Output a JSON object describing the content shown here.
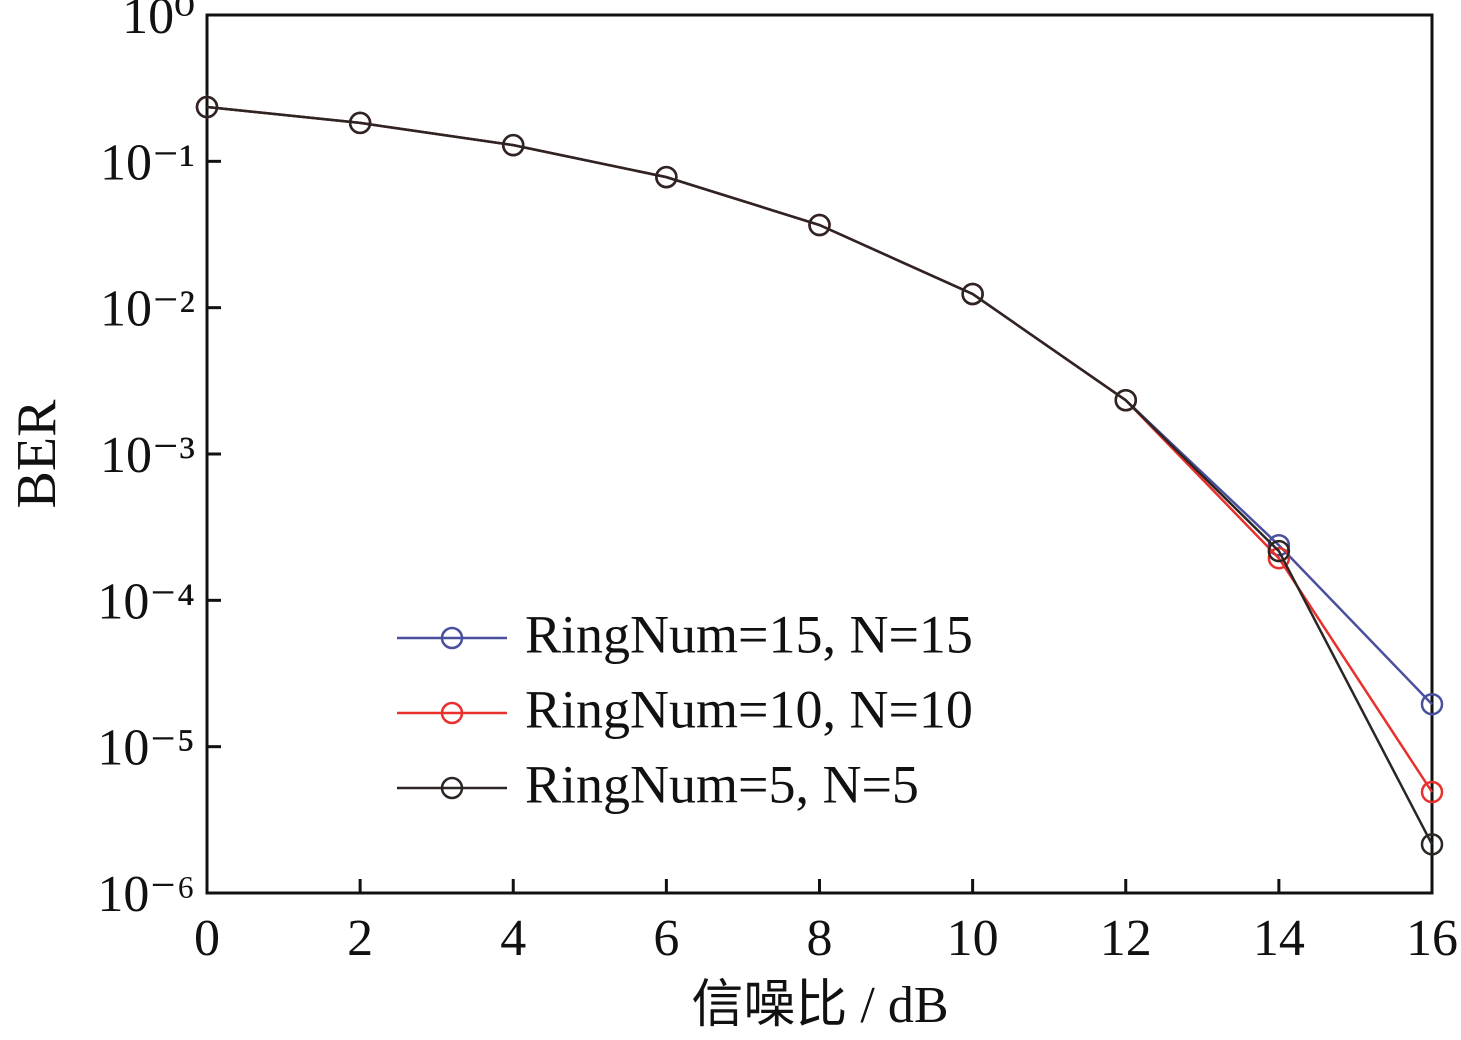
{
  "chart_data": {
    "type": "line",
    "x_label": "信噪比 / dB",
    "y_label": "BER",
    "x": [
      0,
      2,
      4,
      6,
      8,
      10,
      12,
      14,
      16
    ],
    "series": [
      {
        "name": "RingNum=15, N=15",
        "color": "#4a4f9e",
        "values": [
          0.235,
          0.183,
          0.129,
          0.078,
          0.0367,
          0.0124,
          0.00233,
          0.000238,
          1.95e-05
        ]
      },
      {
        "name": "RingNum=10, N=10",
        "color": "#e8302c",
        "values": [
          0.235,
          0.183,
          0.129,
          0.078,
          0.0367,
          0.0124,
          0.00233,
          0.000194,
          4.9e-06
        ]
      },
      {
        "name": "RingNum=5, N=5",
        "color": "#2b2623",
        "values": [
          0.235,
          0.183,
          0.129,
          0.078,
          0.0367,
          0.0124,
          0.00233,
          0.000217,
          2.15e-06
        ]
      }
    ],
    "xlim": [
      0,
      16
    ],
    "xticks": [
      0,
      2,
      4,
      6,
      8,
      10,
      12,
      14,
      16
    ],
    "ylim": [
      1e-06,
      1
    ],
    "yticks": [
      {
        "value": 1,
        "label": "10⁰"
      },
      {
        "value": 0.1,
        "label": "10⁻¹"
      },
      {
        "value": 0.01,
        "label": "10⁻²"
      },
      {
        "value": 0.001,
        "label": "10⁻³"
      },
      {
        "value": 0.0001,
        "label": "10⁻⁴"
      },
      {
        "value": 1e-05,
        "label": "10⁻⁵"
      },
      {
        "value": 1e-06,
        "label": "10⁻⁶"
      }
    ],
    "y_scale": "log",
    "grid": false,
    "legend": "lower left"
  }
}
